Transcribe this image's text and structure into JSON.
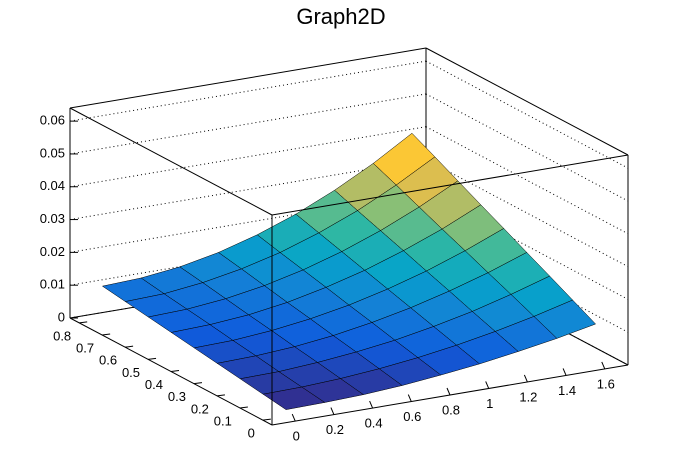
{
  "chart_data": {
    "type": "surface",
    "title": "Graph2D",
    "x": [
      0,
      0.2,
      0.4,
      0.6,
      0.8,
      1.0,
      1.2,
      1.4,
      1.6
    ],
    "y": [
      0,
      0.1,
      0.2,
      0.3,
      0.4,
      0.5,
      0.6,
      0.7,
      0.8
    ],
    "z": [
      [
        0.002,
        0.0022,
        0.0026,
        0.0034,
        0.0046,
        0.006,
        0.0078,
        0.0098,
        0.0122
      ],
      [
        0.003,
        0.0032,
        0.0038,
        0.0048,
        0.0062,
        0.008,
        0.0102,
        0.0128,
        0.0158
      ],
      [
        0.004,
        0.0042,
        0.005,
        0.0062,
        0.0078,
        0.01,
        0.0126,
        0.0158,
        0.0194
      ],
      [
        0.005,
        0.0053,
        0.0061,
        0.0075,
        0.0095,
        0.012,
        0.0151,
        0.0187,
        0.0229
      ],
      [
        0.006,
        0.0063,
        0.0073,
        0.0089,
        0.0111,
        0.014,
        0.0175,
        0.0217,
        0.0265
      ],
      [
        0.007,
        0.0074,
        0.0084,
        0.0102,
        0.0128,
        0.016,
        0.02,
        0.0246,
        0.03
      ],
      [
        0.008,
        0.0084,
        0.0096,
        0.0116,
        0.0144,
        0.018,
        0.0224,
        0.0276,
        0.0336
      ],
      [
        0.009,
        0.0094,
        0.0108,
        0.013,
        0.016,
        0.02,
        0.0248,
        0.0306,
        0.0372
      ],
      [
        0.01,
        0.0105,
        0.0119,
        0.0143,
        0.0177,
        0.022,
        0.0273,
        0.0335,
        0.0407
      ]
    ],
    "xlim": [
      -0.12,
      1.72
    ],
    "ylim": [
      -0.04,
      0.84
    ],
    "zlim": [
      0,
      0.064
    ],
    "xticks": [
      0,
      0.2,
      0.4,
      0.6,
      0.8,
      1,
      1.2,
      1.4,
      1.6
    ],
    "yticks": [
      0,
      0.1,
      0.2,
      0.3,
      0.4,
      0.5,
      0.6,
      0.7,
      0.8
    ],
    "zticks": [
      0,
      0.01,
      0.02,
      0.03,
      0.04,
      0.05,
      0.06
    ],
    "grid": true,
    "palette": [
      "#352a87",
      "#0f5cdd",
      "#1481d6",
      "#06a4ca",
      "#2eb7a4",
      "#87bf77",
      "#d1bb59",
      "#fec832",
      "#f9fb0e"
    ]
  }
}
